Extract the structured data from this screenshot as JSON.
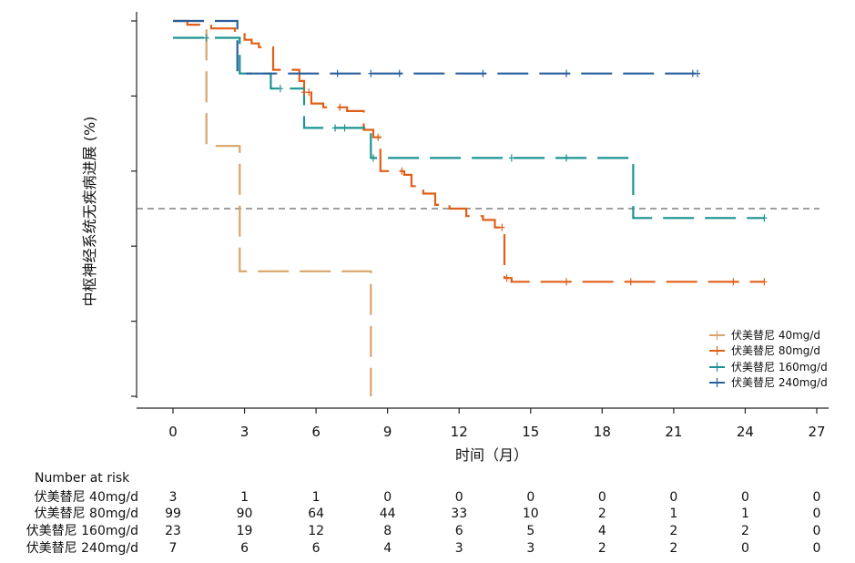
{
  "chart_data": {
    "type": "line",
    "subtype": "kaplan-meier",
    "title": "",
    "xlabel": "时间（月）",
    "ylabel": "中枢神经系统无疾病进展 (%)",
    "xlim": [
      0,
      27
    ],
    "ylim": [
      0,
      100
    ],
    "xticks": [
      0,
      3,
      6,
      9,
      12,
      15,
      18,
      21,
      24,
      27
    ],
    "median_line": 50,
    "legend_position": "bottom-right",
    "series": [
      {
        "name": "伏美替尼 40mg/d",
        "color": "#d9a46a",
        "steps": [
          [
            0,
            100
          ],
          [
            1.4,
            66.7
          ],
          [
            2.8,
            33.3
          ],
          [
            8.3,
            0
          ]
        ],
        "censored": []
      },
      {
        "name": "伏美替尼 80mg/d",
        "color": "#e05f18",
        "steps": [
          [
            0,
            100
          ],
          [
            0.6,
            99
          ],
          [
            1.6,
            98
          ],
          [
            2.6,
            97
          ],
          [
            3.0,
            95
          ],
          [
            3.3,
            94
          ],
          [
            3.6,
            93
          ],
          [
            4.2,
            87
          ],
          [
            5.3,
            84
          ],
          [
            5.5,
            81
          ],
          [
            5.8,
            78
          ],
          [
            6.3,
            77
          ],
          [
            7.3,
            76
          ],
          [
            8.0,
            71
          ],
          [
            8.4,
            69
          ],
          [
            8.7,
            60
          ],
          [
            9.7,
            59
          ],
          [
            10.0,
            56
          ],
          [
            10.5,
            54
          ],
          [
            11.0,
            51
          ],
          [
            11.6,
            50
          ],
          [
            12.3,
            48
          ],
          [
            13.0,
            47
          ],
          [
            13.5,
            45
          ],
          [
            13.9,
            31.5
          ],
          [
            14.2,
            30.5
          ]
        ],
        "censored": [
          5.5,
          5.7,
          7.0,
          8.6,
          9.6,
          13.8,
          14.0,
          16.5,
          19.2,
          23.5,
          24.8
        ]
      },
      {
        "name": "伏美替尼 160mg/d",
        "color": "#1a9391",
        "steps": [
          [
            0,
            95.5
          ],
          [
            2.8,
            86
          ],
          [
            4.1,
            82
          ],
          [
            5.5,
            71.5
          ],
          [
            8.3,
            63.5
          ],
          [
            19.3,
            47.5
          ]
        ],
        "censored": [
          1.4,
          4.5,
          6.8,
          7.2,
          8.4,
          14.2,
          16.5,
          24.8
        ]
      },
      {
        "name": "伏美替尼 240mg/d",
        "color": "#2a5f9e",
        "steps": [
          [
            0,
            100
          ],
          [
            2.7,
            86
          ]
        ],
        "censored": [
          6.9,
          8.3,
          9.5,
          13.0,
          16.5,
          21.8,
          22.0
        ]
      }
    ],
    "risk_table": {
      "title": "Number at risk",
      "times": [
        0,
        3,
        6,
        9,
        12,
        15,
        18,
        21,
        24,
        27
      ],
      "rows": [
        {
          "label": "伏美替尼 40mg/d",
          "values": [
            "3",
            "1",
            "1",
            "0",
            "0",
            "0",
            "0",
            "0",
            "0",
            "0"
          ]
        },
        {
          "label": "伏美替尼 80mg/d",
          "values": [
            "99",
            "90",
            "64",
            "44",
            "33",
            "10",
            "2",
            "1",
            "1",
            "0"
          ]
        },
        {
          "label": "伏美替尼 160mg/d",
          "values": [
            "23",
            "19",
            "12",
            "8",
            "6",
            "5",
            "4",
            "2",
            "2",
            "0"
          ]
        },
        {
          "label": "伏美替尼 240mg/d",
          "values": [
            "7",
            "6",
            "6",
            "4",
            "3",
            "3",
            "2",
            "2",
            "0",
            "0"
          ]
        }
      ]
    }
  }
}
